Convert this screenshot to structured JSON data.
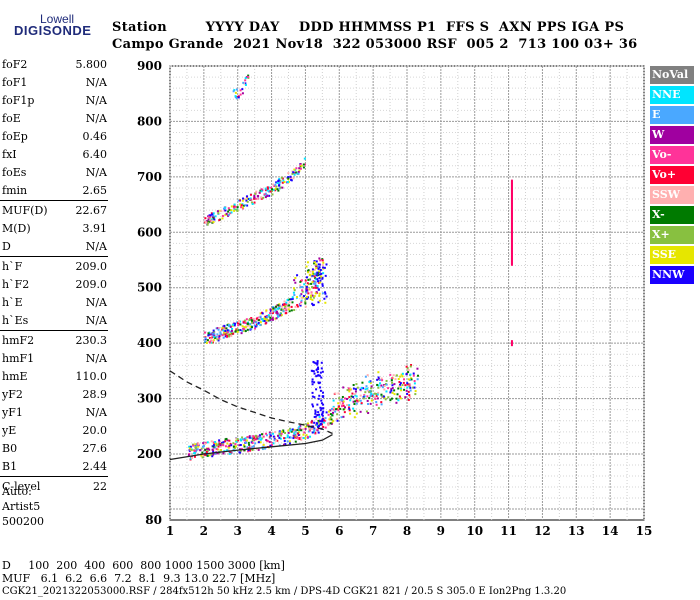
{
  "logo": {
    "top": "Lowell",
    "bottom": "DIGISONDE"
  },
  "header": {
    "row1": "Station        YYYY DAY    DDD HHMMSS P1  FFS S  AXN PPS IGA PS",
    "row2": "Campo Grande  2021 Nov18  322 053000 RSF  005 2  713 100 03+ 36"
  },
  "params": [
    {
      "name": "foF2",
      "value": "5.800"
    },
    {
      "name": "foF1",
      "value": "N/A"
    },
    {
      "name": "foF1p",
      "value": "N/A"
    },
    {
      "name": "foE",
      "value": "N/A"
    },
    {
      "name": "foEp",
      "value": "0.46"
    },
    {
      "name": "fxI",
      "value": "6.40"
    },
    {
      "name": "foEs",
      "value": "N/A"
    },
    {
      "name": "fmin",
      "value": "2.65"
    },
    {
      "name": "MUF(D)",
      "value": "22.67"
    },
    {
      "name": "M(D)",
      "value": "3.91"
    },
    {
      "name": "D",
      "value": "N/A"
    },
    {
      "name": "h`F",
      "value": "209.0"
    },
    {
      "name": "h`F2",
      "value": "209.0"
    },
    {
      "name": "h`E",
      "value": "N/A"
    },
    {
      "name": "h`Es",
      "value": "N/A"
    },
    {
      "name": "hmF2",
      "value": "230.3"
    },
    {
      "name": "hmF1",
      "value": "N/A"
    },
    {
      "name": "hmE",
      "value": "110.0"
    },
    {
      "name": "yF2",
      "value": "28.9"
    },
    {
      "name": "yF1",
      "value": "N/A"
    },
    {
      "name": "yE",
      "value": "20.0"
    },
    {
      "name": "B0",
      "value": "27.6"
    },
    {
      "name": "B1",
      "value": "2.44"
    },
    {
      "name": "C-level",
      "value": "22"
    }
  ],
  "auto": {
    "line1": "Auto:",
    "line2": "Artist5",
    "line3": "500200"
  },
  "legend": [
    {
      "label": "NoVal",
      "color": "#808080"
    },
    {
      "label": "NNE",
      "color": "#00e5ff"
    },
    {
      "label": "E",
      "color": "#4aa8ff"
    },
    {
      "label": "W",
      "color": "#a000a0"
    },
    {
      "label": "Vo-",
      "color": "#ff3399"
    },
    {
      "label": "Vo+",
      "color": "#ff0033"
    },
    {
      "label": "SSW",
      "color": "#ffb0b0"
    },
    {
      "label": "X-",
      "color": "#007a00"
    },
    {
      "label": "X+",
      "color": "#88c040"
    },
    {
      "label": "SSE",
      "color": "#e6e600"
    },
    {
      "label": "NNW",
      "color": "#1a00ff"
    }
  ],
  "footer": {
    "line1": "D     100  200  400  600  800 1000 1500 3000 [km]",
    "line2": "MUF   6.1  6.2  6.6  7.2  8.1  9.3 13.0 22.7 [MHz]",
    "line3": "CGK21_2021322053000.RSF / 284fx512h 50 kHz 2.5 km / DPS-4D CGK21 821 / 20.5 S 305.0 E Ion2Png 1.3.20"
  },
  "chart_data": {
    "type": "scatter",
    "xlabel": "",
    "ylabel": "",
    "xlim": [
      1,
      15
    ],
    "ylim": [
      80,
      900
    ],
    "x_ticks": [
      1,
      2,
      3,
      4,
      5,
      6,
      7,
      8,
      9,
      10,
      11,
      12,
      13,
      14,
      15
    ],
    "y_ticks": [
      80,
      200,
      300,
      400,
      500,
      600,
      700,
      800,
      900
    ],
    "grid": true,
    "series": [
      {
        "name": "F trace",
        "points": [
          [
            1.5,
            205
          ],
          [
            2.0,
            210
          ],
          [
            2.5,
            214
          ],
          [
            3.0,
            218
          ],
          [
            3.5,
            222
          ],
          [
            4.0,
            228
          ],
          [
            4.5,
            234
          ],
          [
            5.0,
            243
          ],
          [
            5.5,
            260
          ],
          [
            6.0,
            280
          ],
          [
            6.5,
            295
          ],
          [
            7.0,
            305
          ],
          [
            7.5,
            312
          ],
          [
            8.0,
            320
          ],
          [
            8.3,
            330
          ]
        ]
      },
      {
        "name": "2F trace",
        "points": [
          [
            2.0,
            410
          ],
          [
            2.5,
            420
          ],
          [
            3.0,
            430
          ],
          [
            3.5,
            440
          ],
          [
            4.0,
            455
          ],
          [
            4.5,
            470
          ],
          [
            5.0,
            490
          ],
          [
            5.5,
            520
          ]
        ]
      },
      {
        "name": "3F trace",
        "points": [
          [
            2.0,
            620
          ],
          [
            2.5,
            635
          ],
          [
            3.0,
            650
          ],
          [
            3.5,
            665
          ],
          [
            4.0,
            680
          ],
          [
            4.5,
            700
          ],
          [
            5.0,
            730
          ]
        ]
      },
      {
        "name": "4F trace",
        "points": [
          [
            2.8,
            845
          ],
          [
            3.1,
            860
          ],
          [
            3.3,
            880
          ]
        ]
      },
      {
        "name": "interference",
        "points": [
          [
            11.1,
            545
          ],
          [
            11.1,
            600
          ],
          [
            11.1,
            650
          ],
          [
            11.1,
            695
          ],
          [
            11.1,
            400
          ]
        ]
      }
    ],
    "profile_solid": [
      [
        1.0,
        190
      ],
      [
        2.0,
        200
      ],
      [
        3.0,
        207
      ],
      [
        4.0,
        213
      ],
      [
        5.0,
        219
      ],
      [
        5.5,
        225
      ],
      [
        5.8,
        235
      ]
    ],
    "profile_dashed": [
      [
        1.0,
        350
      ],
      [
        1.5,
        330
      ],
      [
        2.0,
        315
      ],
      [
        2.5,
        298
      ],
      [
        3.0,
        285
      ],
      [
        3.5,
        275
      ],
      [
        4.0,
        265
      ],
      [
        4.5,
        258
      ],
      [
        5.0,
        252
      ],
      [
        5.5,
        245
      ],
      [
        5.8,
        237
      ]
    ]
  }
}
